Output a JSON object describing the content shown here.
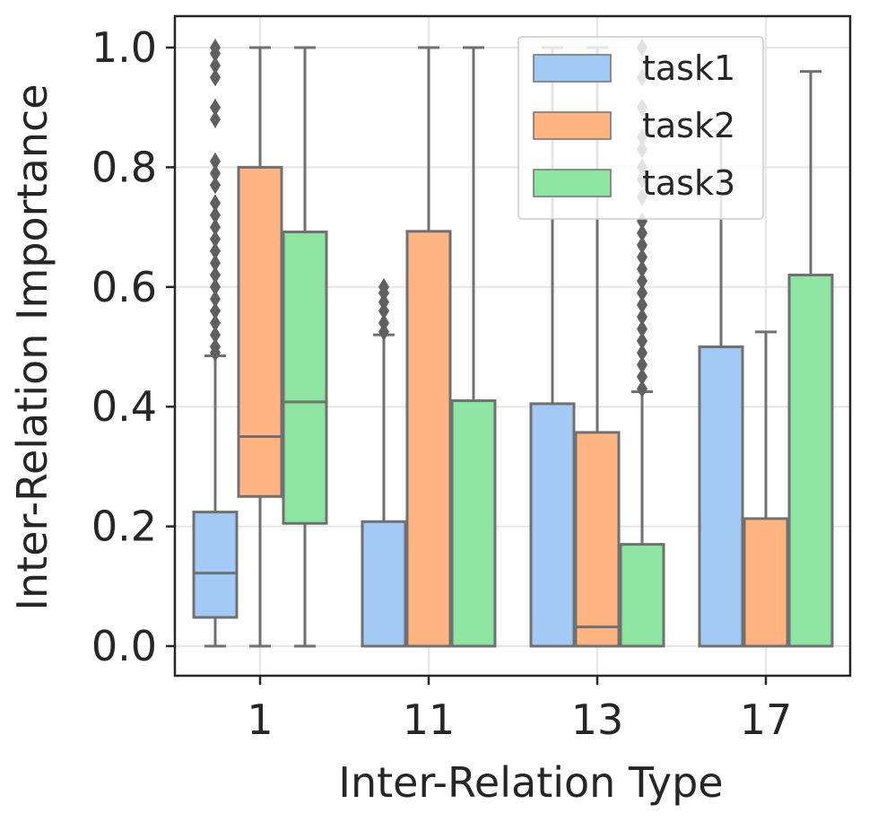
{
  "chart_data": {
    "type": "box",
    "xlabel": "Inter-Relation Type",
    "ylabel": "Inter-Relation Importance",
    "ylim": [
      -0.05,
      1.05
    ],
    "yticks": [
      "0.0",
      "0.2",
      "0.4",
      "0.6",
      "0.8",
      "1.0"
    ],
    "ytick_values": [
      0.0,
      0.2,
      0.4,
      0.6,
      0.8,
      1.0
    ],
    "categories": [
      "1",
      "11",
      "13",
      "17"
    ],
    "grid": true,
    "legend": {
      "position": "top-right",
      "entries": [
        "task1",
        "task2",
        "task3"
      ]
    },
    "colors": {
      "task1": "#a1c9f4",
      "task2": "#ffb482",
      "task3": "#8de5a1",
      "edge": "#707070",
      "grid": "#e5e5e5"
    },
    "series": [
      {
        "name": "task1",
        "boxes": [
          {
            "category": "1",
            "q1": 0.048,
            "median": 0.122,
            "q3": 0.224,
            "whisker_low": 0.0,
            "whisker_high": 0.485,
            "outliers": [
              0.49,
              0.5,
              0.52,
              0.54,
              0.56,
              0.58,
              0.6,
              0.62,
              0.64,
              0.66,
              0.68,
              0.7,
              0.72,
              0.74,
              0.77,
              0.79,
              0.81,
              0.88,
              0.9,
              0.95,
              0.97,
              0.99,
              1.0
            ]
          },
          {
            "category": "11",
            "q1": 0.0,
            "median": 0.0,
            "q3": 0.208,
            "whisker_low": 0.0,
            "whisker_high": 0.52,
            "outliers": [
              0.525,
              0.54,
              0.56,
              0.575,
              0.59,
              0.6
            ]
          },
          {
            "category": "13",
            "q1": 0.0,
            "median": 0.0,
            "q3": 0.405,
            "whisker_low": 0.0,
            "whisker_high": 1.0,
            "outliers": []
          },
          {
            "category": "17",
            "q1": 0.0,
            "median": 0.0,
            "q3": 0.5,
            "whisker_low": 0.0,
            "whisker_high": 0.86,
            "outliers": []
          }
        ]
      },
      {
        "name": "task2",
        "boxes": [
          {
            "category": "1",
            "q1": 0.25,
            "median": 0.35,
            "q3": 0.8,
            "whisker_low": 0.0,
            "whisker_high": 1.0,
            "outliers": []
          },
          {
            "category": "11",
            "q1": 0.0,
            "median": 0.0,
            "q3": 0.693,
            "whisker_low": 0.0,
            "whisker_high": 1.0,
            "outliers": []
          },
          {
            "category": "13",
            "q1": 0.0,
            "median": 0.032,
            "q3": 0.357,
            "whisker_low": 0.0,
            "whisker_high": 1.0,
            "outliers": []
          },
          {
            "category": "17",
            "q1": 0.0,
            "median": 0.0,
            "q3": 0.213,
            "whisker_low": 0.0,
            "whisker_high": 0.525,
            "outliers": []
          }
        ]
      },
      {
        "name": "task3",
        "boxes": [
          {
            "category": "1",
            "q1": 0.205,
            "median": 0.408,
            "q3": 0.692,
            "whisker_low": 0.0,
            "whisker_high": 1.0,
            "outliers": []
          },
          {
            "category": "11",
            "q1": 0.0,
            "median": 0.0,
            "q3": 0.41,
            "whisker_low": 0.0,
            "whisker_high": 1.0,
            "outliers": []
          },
          {
            "category": "13",
            "q1": 0.0,
            "median": 0.0,
            "q3": 0.17,
            "whisker_low": 0.0,
            "whisker_high": 0.425,
            "outliers": [
              0.43,
              0.45,
              0.47,
              0.49,
              0.51,
              0.53,
              0.55,
              0.57,
              0.59,
              0.61,
              0.63,
              0.65,
              0.67,
              0.69,
              0.71,
              0.75,
              0.78,
              0.8,
              0.83,
              0.85,
              0.9,
              0.95,
              1.0
            ]
          },
          {
            "category": "17",
            "q1": 0.0,
            "median": 0.0,
            "q3": 0.62,
            "whisker_low": 0.0,
            "whisker_high": 0.96,
            "outliers": []
          }
        ]
      }
    ]
  }
}
